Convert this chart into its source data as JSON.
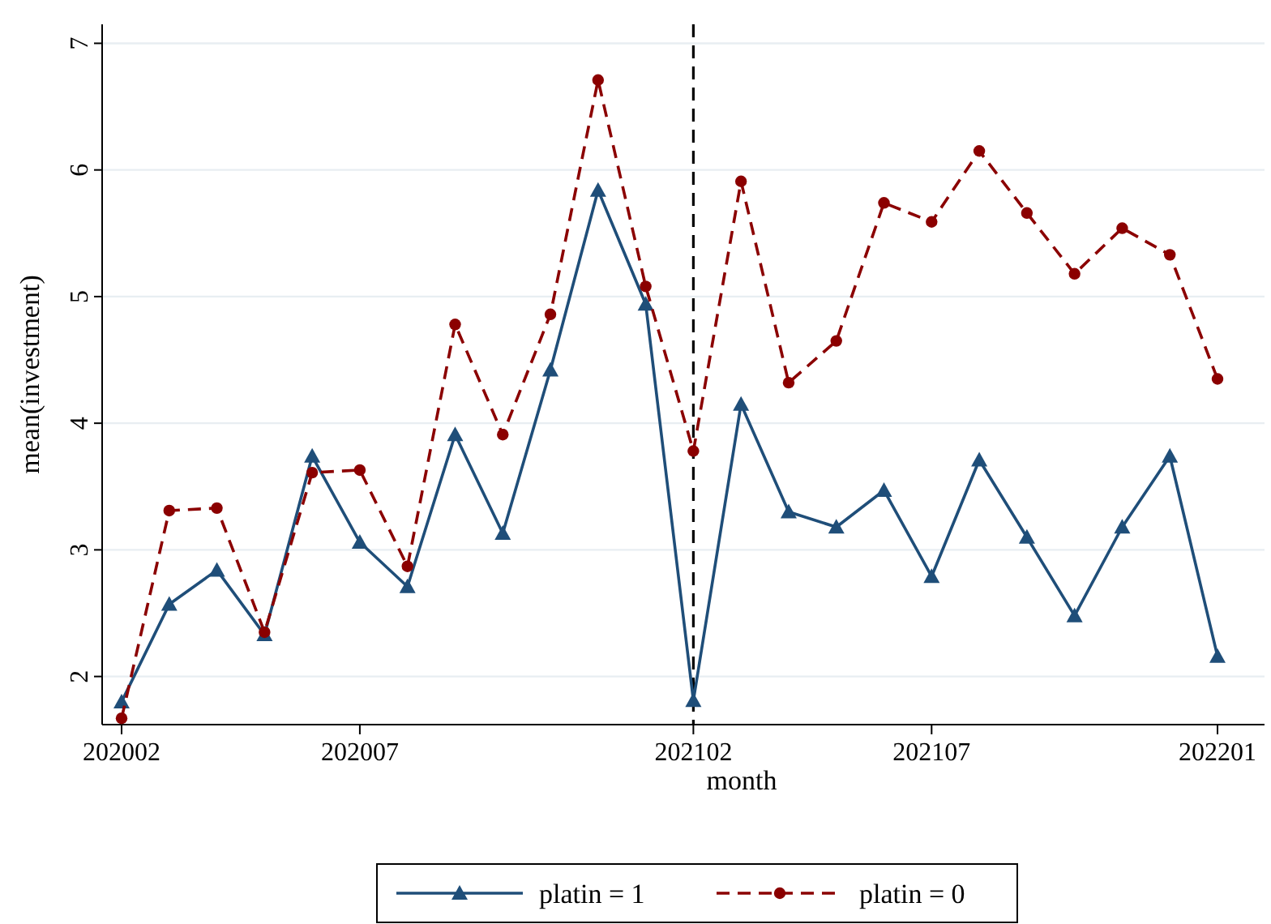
{
  "chart_data": {
    "type": "line",
    "xlabel": "month",
    "ylabel": "mean(investment)",
    "categories": [
      "202002",
      null,
      null,
      null,
      null,
      "202007",
      null,
      null,
      null,
      null,
      null,
      null,
      "202102",
      null,
      null,
      null,
      null,
      "202107",
      null,
      null,
      null,
      null,
      null,
      "202201"
    ],
    "series": [
      {
        "name": "platin = 1",
        "color": "#1f4e79",
        "marker": "triangle",
        "line_style": "solid",
        "values": [
          1.8,
          2.57,
          2.84,
          2.33,
          3.74,
          3.06,
          2.71,
          3.91,
          3.13,
          4.42,
          5.84,
          4.94,
          1.81,
          4.15,
          3.3,
          3.18,
          3.47,
          2.79,
          3.71,
          3.1,
          2.48,
          3.18,
          3.74,
          2.16
        ]
      },
      {
        "name": "platin = 0",
        "color": "#8b0000",
        "marker": "circle",
        "line_style": "dashed",
        "values": [
          1.67,
          3.31,
          3.33,
          2.35,
          3.61,
          3.63,
          2.87,
          4.78,
          3.91,
          4.86,
          6.71,
          5.08,
          3.78,
          5.91,
          4.32,
          4.65,
          5.74,
          5.59,
          6.15,
          5.66,
          5.18,
          5.54,
          5.33,
          4.35
        ]
      }
    ],
    "ylim": [
      1.62,
      7.15
    ],
    "yticks": [
      2,
      3,
      4,
      5,
      6,
      7
    ],
    "grid": "y",
    "legend": "bottom",
    "ref_lines": [
      {
        "axis": "x",
        "value": "202102",
        "color": "#000000",
        "line_style": "dashed"
      }
    ]
  }
}
